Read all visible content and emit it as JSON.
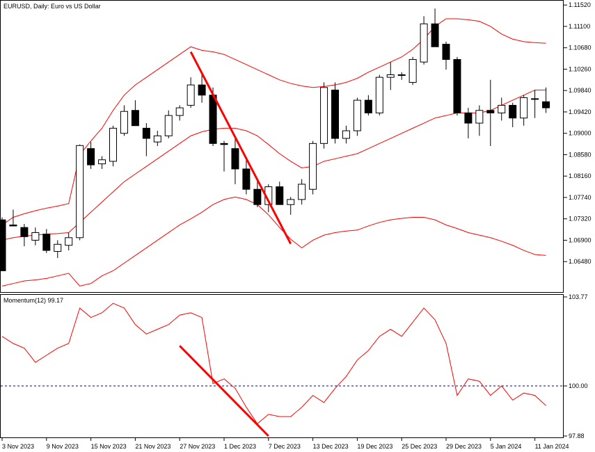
{
  "chart_data": [
    {
      "type": "candlestick",
      "title": "EURUSD, Daily:  Euro vs US Dollar",
      "ylim": [
        1.0595,
        1.1155
      ],
      "yticks": [
        "1.11520",
        "1.11100",
        "1.10680",
        "1.10260",
        "1.09840",
        "1.09420",
        "1.09000",
        "1.08580",
        "1.08160",
        "1.07740",
        "1.07320",
        "1.06900",
        "1.06480"
      ],
      "ohlc": [
        [
          1.073,
          1.0735,
          1.063,
          1.063
        ],
        [
          1.072,
          1.075,
          1.0718,
          1.0718
        ],
        [
          1.0715,
          1.0722,
          1.0678,
          1.0697
        ],
        [
          1.069,
          1.0715,
          1.068,
          1.0705
        ],
        [
          1.0702,
          1.0712,
          1.0665,
          1.067
        ],
        [
          1.0668,
          1.069,
          1.0655,
          1.0682
        ],
        [
          1.068,
          1.0705,
          1.067,
          1.0695
        ],
        [
          1.0695,
          1.0878,
          1.069,
          1.0876
        ],
        [
          1.087,
          1.0883,
          1.083,
          1.0838
        ],
        [
          1.084,
          1.0855,
          1.083,
          1.0848
        ],
        [
          1.0845,
          1.0915,
          1.0835,
          1.091
        ],
        [
          1.09,
          1.0955,
          1.0895,
          1.0943
        ],
        [
          1.0945,
          1.0965,
          1.0915,
          1.0915
        ],
        [
          1.091,
          1.092,
          1.0855,
          1.089
        ],
        [
          1.0883,
          1.0905,
          1.0875,
          1.0895
        ],
        [
          1.0895,
          1.0945,
          1.089,
          1.0935
        ],
        [
          1.0935,
          1.0955,
          1.0925,
          1.095
        ],
        [
          1.0955,
          1.101,
          1.095,
          1.0995
        ],
        [
          1.0995,
          1.1015,
          1.096,
          1.0975
        ],
        [
          1.0975,
          1.099,
          1.0875,
          1.088
        ],
        [
          1.088,
          1.0885,
          1.0825,
          1.0878
        ],
        [
          1.087,
          1.089,
          1.08,
          1.083
        ],
        [
          1.083,
          1.085,
          1.078,
          1.079
        ],
        [
          1.079,
          1.081,
          1.0755,
          1.076
        ],
        [
          1.076,
          1.08,
          1.0745,
          1.0795
        ],
        [
          1.0795,
          1.0805,
          1.076,
          1.076
        ],
        [
          1.076,
          1.0775,
          1.074,
          1.077
        ],
        [
          1.077,
          1.081,
          1.076,
          1.08
        ],
        [
          1.079,
          1.0885,
          1.078,
          1.088
        ],
        [
          1.088,
          1.1,
          1.087,
          1.099
        ],
        [
          1.0985,
          1.1,
          1.088,
          1.089
        ],
        [
          1.089,
          1.0915,
          1.088,
          1.0905
        ],
        [
          1.0905,
          1.097,
          1.0895,
          1.0965
        ],
        [
          1.0965,
          1.0975,
          1.0935,
          1.094
        ],
        [
          1.094,
          1.1015,
          1.0935,
          1.101
        ],
        [
          1.101,
          1.104,
          1.0985,
          1.1015
        ],
        [
          1.1015,
          1.102,
          1.1005,
          1.1015
        ],
        [
          1.1,
          1.105,
          1.0995,
          1.1045
        ],
        [
          1.104,
          1.113,
          1.1035,
          1.1115
        ],
        [
          1.1115,
          1.1145,
          1.107,
          1.107
        ],
        [
          1.1075,
          1.108,
          1.1025,
          1.1045
        ],
        [
          1.1045,
          1.105,
          1.0935,
          1.094
        ],
        [
          1.094,
          1.095,
          1.089,
          1.092
        ],
        [
          1.092,
          1.0955,
          1.0895,
          1.0945
        ],
        [
          1.0945,
          1.1005,
          1.0875,
          1.094
        ],
        [
          1.094,
          1.097,
          1.0925,
          1.0955
        ],
        [
          1.0955,
          1.096,
          1.0912,
          1.093
        ],
        [
          1.093,
          1.0975,
          1.0915,
          1.097
        ],
        [
          1.0968,
          1.0985,
          1.093,
          1.0968
        ],
        [
          1.0962,
          1.099,
          1.094,
          1.095
        ]
      ],
      "bollinger": {
        "upper": [
          1.072,
          1.0735,
          1.0742,
          1.0748,
          1.0753,
          1.0757,
          1.0762,
          1.0858,
          1.0885,
          1.091,
          1.0945,
          1.0975,
          1.0995,
          1.101,
          1.1025,
          1.104,
          1.1055,
          1.107,
          1.1063,
          1.106,
          1.1055,
          1.1045,
          1.1035,
          1.1025,
          1.1015,
          1.1005,
          1.0998,
          1.0993,
          1.099,
          1.0992,
          1.0995,
          1.1,
          1.1008,
          1.102,
          1.103,
          1.104,
          1.105,
          1.1065,
          1.1085,
          1.111,
          1.1125,
          1.1125,
          1.1123,
          1.112,
          1.111,
          1.1095,
          1.1085,
          1.108,
          1.1078,
          1.1077
        ],
        "middle": [
          1.069,
          1.0695,
          1.0698,
          1.07,
          1.0702,
          1.0703,
          1.0705,
          1.0725,
          1.0745,
          1.0765,
          1.0785,
          1.0805,
          1.082,
          1.0835,
          1.085,
          1.0865,
          1.088,
          1.0895,
          1.0903,
          1.0908,
          1.091,
          1.091,
          1.0905,
          1.0895,
          1.0878,
          1.086,
          1.0845,
          1.0832,
          1.0835,
          1.0845,
          1.085,
          1.0855,
          1.086,
          1.087,
          1.088,
          1.089,
          1.09,
          1.091,
          1.092,
          1.093,
          1.0935,
          1.094,
          1.094,
          1.094,
          1.0945,
          1.0955,
          1.0965,
          1.0975,
          1.0985,
          1.0985
        ],
        "lower": [
          1.06,
          1.0605,
          1.061,
          1.0612,
          1.0615,
          1.062,
          1.0625,
          1.06,
          1.0605,
          1.062,
          1.063,
          1.0645,
          1.066,
          1.0675,
          1.069,
          1.0705,
          1.072,
          1.0732,
          1.0745,
          1.076,
          1.077,
          1.0775,
          1.077,
          1.076,
          1.074,
          1.0715,
          1.0692,
          1.0675,
          1.069,
          1.07,
          1.0705,
          1.0708,
          1.071,
          1.0718,
          1.0725,
          1.073,
          1.0733,
          1.0735,
          1.0735,
          1.073,
          1.072,
          1.0713,
          1.0705,
          1.07,
          1.0695,
          1.0688,
          1.068,
          1.067,
          1.0662,
          1.066
        ]
      },
      "trendline": {
        "from": [
          17,
          1.106
        ],
        "to": [
          26,
          1.0683
        ]
      }
    },
    {
      "type": "line",
      "title": "Momentum(12) 99.17",
      "ylim": [
        97.88,
        103.77
      ],
      "yticks": [
        "103.77",
        "100.00",
        "97.88"
      ],
      "reference": 100.0,
      "values": [
        102.1,
        101.8,
        101.6,
        101.0,
        101.3,
        101.6,
        101.8,
        103.3,
        102.9,
        103.1,
        103.5,
        103.3,
        102.6,
        102.2,
        102.4,
        102.6,
        103.0,
        103.1,
        102.9,
        100.1,
        100.3,
        99.9,
        99.1,
        98.4,
        98.8,
        98.7,
        98.7,
        99.1,
        99.6,
        99.3,
        99.9,
        100.4,
        101.1,
        101.5,
        102.1,
        102.4,
        102.1,
        102.7,
        103.3,
        102.8,
        101.8,
        99.6,
        100.3,
        100.2,
        99.6,
        100.0,
        99.4,
        99.7,
        99.6,
        99.17
      ],
      "trendline": {
        "from": [
          16,
          101.7
        ],
        "to": [
          24,
          97.88
        ]
      }
    }
  ],
  "x_labels": [
    "3 Nov 2023",
    "9 Nov 2023",
    "15 Nov 2023",
    "21 Nov 2023",
    "27 Nov 2023",
    "1 Dec 2023",
    "7 Dec 2023",
    "13 Dec 2023",
    "19 Dec 2023",
    "25 Dec 2023",
    "29 Dec 2023",
    "5 Jan 2024",
    "11 Jan 2024"
  ],
  "colors": {
    "bands": "#ff0000",
    "trend": "#ff0000",
    "momentum": "#ff0000",
    "reference": "#000080"
  }
}
